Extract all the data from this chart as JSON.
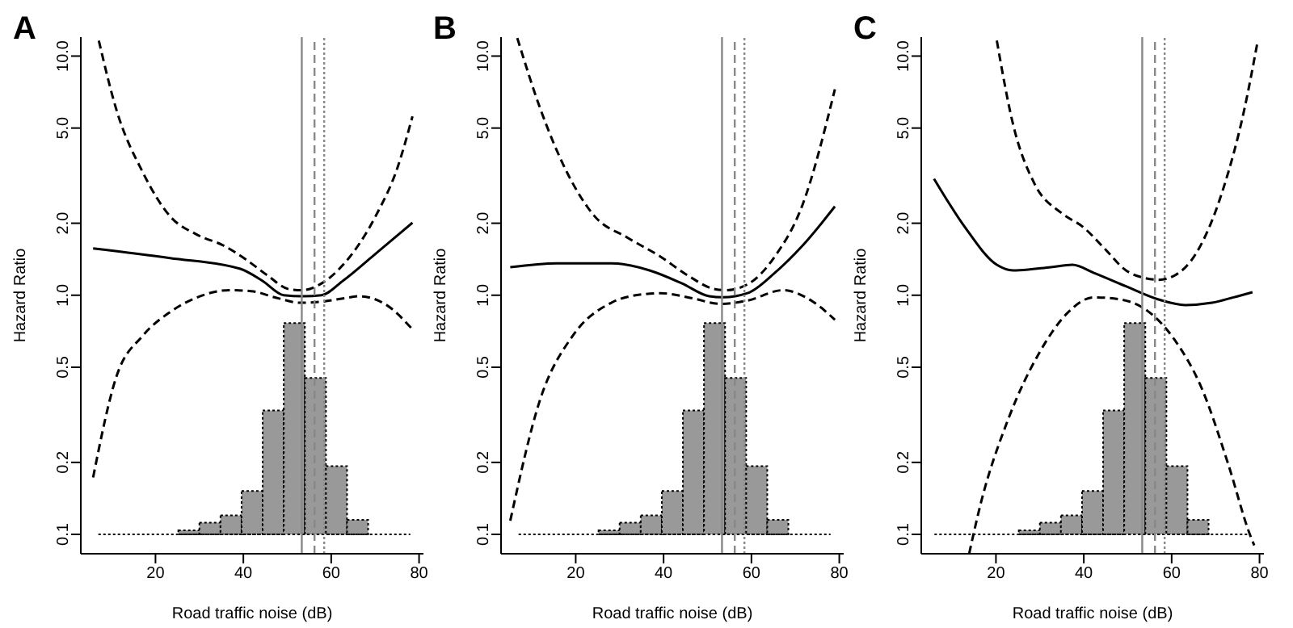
{
  "chart_data": [
    {
      "type": "line",
      "title": "A",
      "xlabel": "Road traffic noise (dB)",
      "ylabel": "Hazard Ratio",
      "log": "y",
      "grid": false,
      "xlim": [
        3,
        81
      ],
      "xticks": [
        20,
        40,
        60,
        80
      ],
      "ylim": [
        0.083,
        12
      ],
      "yticks": [
        0.1,
        0.2,
        0.5,
        {
          "value": 1,
          "label": "1.0"
        },
        {
          "value": 2,
          "label": "2.0"
        },
        {
          "value": 5,
          "label": "5.0"
        },
        {
          "value": 10,
          "label": "10.0"
        }
      ],
      "ref_lines": [
        {
          "axis": "x",
          "value": 53.3,
          "color": "#888888",
          "line_style": "solid"
        },
        {
          "axis": "x",
          "value": 56.2,
          "color": "#888888",
          "line_style": "dashed"
        },
        {
          "axis": "x",
          "value": 58.4,
          "color": "#888888",
          "line_style": "dotted"
        }
      ],
      "series": [
        {
          "type": "line",
          "color": "#000000",
          "line_style": "dotted",
          "x": [
            7,
            78
          ],
          "values": [
            0.1,
            0.1
          ]
        },
        {
          "type": "histogram",
          "color": "#999999",
          "bins": [
            25.2,
            30,
            34.8,
            39.6,
            44.4,
            49.2,
            54,
            58.8,
            63.6,
            68.4
          ],
          "base": [
            0.1,
            0.1,
            0.1,
            0.1,
            0.1,
            0.1,
            0.1,
            0.1,
            0.1
          ],
          "values": [
            0.004,
            0.012,
            0.02,
            0.052,
            0.23,
            0.665,
            0.351,
            0.093,
            0.015
          ]
        },
        {
          "type": "line",
          "color": "#000000",
          "line_style": "dashed",
          "x": [
            7.1,
            11,
            17.2,
            23.3,
            29.5,
            35.6,
            40.6,
            45.5,
            50.4,
            53.5,
            57.8,
            62.7,
            70.1,
            75.1,
            78.5
          ],
          "values": [
            11.6,
            6.05,
            3.24,
            2.14,
            1.79,
            1.61,
            1.41,
            1.21,
            1.06,
            1.05,
            1.12,
            1.34,
            2.14,
            3.42,
            5.6
          ]
        },
        {
          "type": "line",
          "color": "#000000",
          "line_style": "solid",
          "x": [
            5.8,
            23.3,
            39.3,
            44.3,
            49.2,
            53.5,
            57.8,
            62.7,
            70.1,
            78.5
          ],
          "values": [
            1.57,
            1.43,
            1.29,
            1.15,
            1,
            0.99,
            1,
            1.15,
            1.49,
            2.01
          ]
        },
        {
          "type": "line",
          "color": "#000000",
          "line_style": "dashed",
          "x": [
            5.8,
            11,
            17.2,
            23.3,
            29.5,
            36.9,
            41.8,
            48,
            52.9,
            57.8,
            62.7,
            66.4,
            72.6,
            78.5
          ],
          "values": [
            0.173,
            0.451,
            0.68,
            0.85,
            0.98,
            1.05,
            1.04,
            0.97,
            0.93,
            0.94,
            0.97,
            0.99,
            0.91,
            0.72
          ]
        }
      ]
    },
    {
      "type": "line",
      "title": "B",
      "xlabel": "Road traffic noise (dB)",
      "ylabel": "Hazard Ratio",
      "log": "y",
      "grid": false,
      "xlim": [
        3,
        81
      ],
      "xticks": [
        20,
        40,
        60,
        80
      ],
      "ylim": [
        0.083,
        12
      ],
      "yticks": [
        0.1,
        0.2,
        0.5,
        {
          "value": 1,
          "label": "1.0"
        },
        {
          "value": 2,
          "label": "2.0"
        },
        {
          "value": 5,
          "label": "5.0"
        },
        {
          "value": 10,
          "label": "10.0"
        }
      ],
      "ref_lines": [
        {
          "axis": "x",
          "value": 53.3,
          "color": "#888888",
          "line_style": "solid"
        },
        {
          "axis": "x",
          "value": 56.2,
          "color": "#888888",
          "line_style": "dashed"
        },
        {
          "axis": "x",
          "value": 58.4,
          "color": "#888888",
          "line_style": "dotted"
        }
      ],
      "series": [
        {
          "type": "line",
          "color": "#000000",
          "line_style": "dotted",
          "x": [
            7,
            78
          ],
          "values": [
            0.1,
            0.1
          ]
        },
        {
          "type": "histogram",
          "color": "#999999",
          "bins": [
            25.2,
            30,
            34.8,
            39.6,
            44.4,
            49.2,
            54,
            58.8,
            63.6,
            68.4
          ],
          "base": [
            0.1,
            0.1,
            0.1,
            0.1,
            0.1,
            0.1,
            0.1,
            0.1,
            0.1
          ],
          "values": [
            0.004,
            0.012,
            0.02,
            0.052,
            0.23,
            0.665,
            0.351,
            0.093,
            0.015
          ]
        },
        {
          "type": "line",
          "color": "#000000",
          "line_style": "dashed",
          "x": [
            6.7,
            11.9,
            18.1,
            24.3,
            31.8,
            39.3,
            45.5,
            51.7,
            54.2,
            59.1,
            65.3,
            71.6,
            79
          ],
          "values": [
            11.9,
            6.05,
            3.24,
            2.14,
            1.74,
            1.45,
            1.21,
            1.06,
            1.05,
            1.11,
            1.45,
            2.38,
            7.26
          ]
        },
        {
          "type": "line",
          "color": "#000000",
          "line_style": "solid",
          "x": [
            5.1,
            15.7,
            28.1,
            36.8,
            44.2,
            50.4,
            53.5,
            59.1,
            65.3,
            71.6,
            79
          ],
          "values": [
            1.31,
            1.36,
            1.36,
            1.27,
            1.12,
            0.99,
            0.98,
            1.02,
            1.24,
            1.61,
            2.35
          ]
        },
        {
          "type": "line",
          "color": "#000000",
          "line_style": "dashed",
          "x": [
            5.1,
            11.9,
            19.4,
            28.1,
            35.5,
            39.3,
            46.7,
            52.9,
            59.1,
            67.2,
            74,
            79
          ],
          "values": [
            0.114,
            0.366,
            0.68,
            0.93,
            1.01,
            1.02,
            0.97,
            0.92,
            0.95,
            1.05,
            0.94,
            0.79
          ]
        }
      ]
    },
    {
      "type": "line",
      "title": "C",
      "xlabel": "Road traffic noise (dB)",
      "ylabel": "Hazard Ratio",
      "log": "y",
      "grid": false,
      "xlim": [
        3,
        81
      ],
      "xticks": [
        20,
        40,
        60,
        80
      ],
      "ylim": [
        0.083,
        12
      ],
      "yticks": [
        0.1,
        0.2,
        0.5,
        {
          "value": 1,
          "label": "1.0"
        },
        {
          "value": 2,
          "label": "2.0"
        },
        {
          "value": 5,
          "label": "5.0"
        },
        {
          "value": 10,
          "label": "10.0"
        }
      ],
      "ref_lines": [
        {
          "axis": "x",
          "value": 53.3,
          "color": "#888888",
          "line_style": "solid"
        },
        {
          "axis": "x",
          "value": 56.2,
          "color": "#888888",
          "line_style": "dashed"
        },
        {
          "axis": "x",
          "value": 58.4,
          "color": "#888888",
          "line_style": "dotted"
        }
      ],
      "series": [
        {
          "type": "line",
          "color": "#000000",
          "line_style": "dotted",
          "x": [
            6,
            78
          ],
          "values": [
            0.1,
            0.1
          ]
        },
        {
          "type": "histogram",
          "color": "#999999",
          "bins": [
            25.2,
            30,
            34.8,
            39.6,
            44.4,
            49.2,
            54,
            58.8,
            63.6,
            68.4
          ],
          "base": [
            0.1,
            0.1,
            0.1,
            0.1,
            0.1,
            0.1,
            0.1,
            0.1,
            0.1
          ],
          "values": [
            0.004,
            0.012,
            0.02,
            0.052,
            0.23,
            0.665,
            0.351,
            0.093,
            0.015
          ]
        },
        {
          "type": "line",
          "color": "#000000",
          "line_style": "dashed",
          "x": [
            20.2,
            23.9,
            28.8,
            35,
            39.8,
            44.7,
            49.6,
            53.9,
            57,
            60.7,
            65.5,
            71.7,
            76.6,
            79.6
          ],
          "values": [
            11.6,
            5.18,
            2.92,
            2.2,
            1.93,
            1.57,
            1.27,
            1.18,
            1.16,
            1.21,
            1.49,
            2.77,
            6.05,
            11.6
          ]
        },
        {
          "type": "line",
          "color": "#000000",
          "line_style": "solid",
          "x": [
            5.9,
            12.9,
            20.2,
            23.9,
            32.5,
            37.4,
            42.3,
            49.6,
            57,
            63.1,
            69.2,
            74.1,
            78.4
          ],
          "values": [
            3.07,
            1.93,
            1.34,
            1.27,
            1.31,
            1.34,
            1.24,
            1.09,
            0.96,
            0.91,
            0.93,
            0.98,
            1.03
          ]
        },
        {
          "type": "line",
          "color": "#000000",
          "line_style": "dashed",
          "x": [
            13.9,
            16.6,
            22.7,
            30,
            36.2,
            42.3,
            48.4,
            54.5,
            60.7,
            66.8,
            72.9,
            77.8,
            78.8
          ],
          "values": [
            0.083,
            0.136,
            0.3,
            0.58,
            0.84,
            0.98,
            0.96,
            0.86,
            0.65,
            0.41,
            0.196,
            0.1,
            0.09
          ]
        }
      ]
    }
  ]
}
